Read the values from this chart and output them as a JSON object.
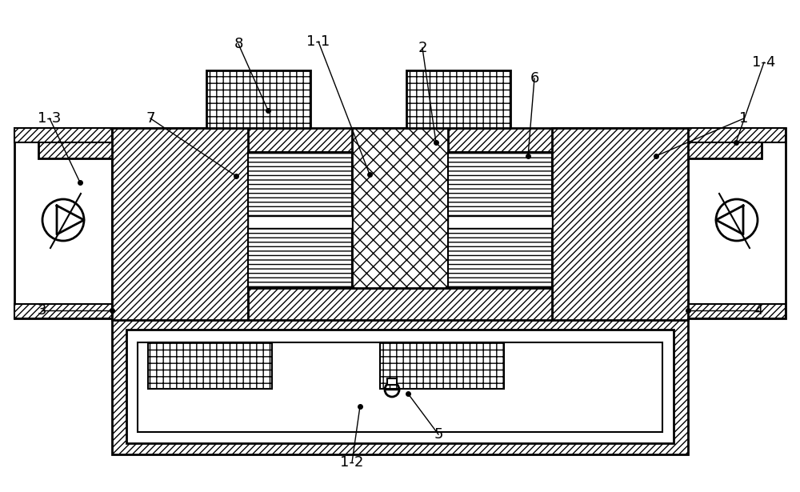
{
  "bg_color": "#ffffff",
  "line_color": "#000000",
  "labels_config": [
    [
      "1",
      [
        930,
        148
      ],
      [
        820,
        195
      ]
    ],
    [
      "1-1",
      [
        398,
        52
      ],
      [
        462,
        218
      ]
    ],
    [
      "1-2",
      [
        440,
        578
      ],
      [
        450,
        508
      ]
    ],
    [
      "1-3",
      [
        62,
        148
      ],
      [
        100,
        228
      ]
    ],
    [
      "1-4",
      [
        955,
        78
      ],
      [
        920,
        178
      ]
    ],
    [
      "2",
      [
        528,
        60
      ],
      [
        545,
        178
      ]
    ],
    [
      "3",
      [
        52,
        388
      ],
      [
        140,
        388
      ]
    ],
    [
      "4",
      [
        948,
        388
      ],
      [
        860,
        388
      ]
    ],
    [
      "5",
      [
        548,
        543
      ],
      [
        510,
        492
      ]
    ],
    [
      "6",
      [
        668,
        98
      ],
      [
        660,
        195
      ]
    ],
    [
      "7",
      [
        188,
        148
      ],
      [
        295,
        220
      ]
    ],
    [
      "8",
      [
        298,
        55
      ],
      [
        335,
        138
      ]
    ]
  ]
}
